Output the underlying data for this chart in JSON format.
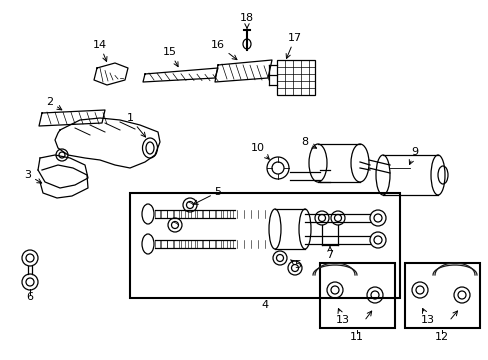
{
  "background_color": "#ffffff",
  "line_color": "#1a1a1a",
  "fig_width": 4.89,
  "fig_height": 3.6,
  "dpi": 100,
  "xlim": [
    0,
    489
  ],
  "ylim": [
    0,
    360
  ]
}
